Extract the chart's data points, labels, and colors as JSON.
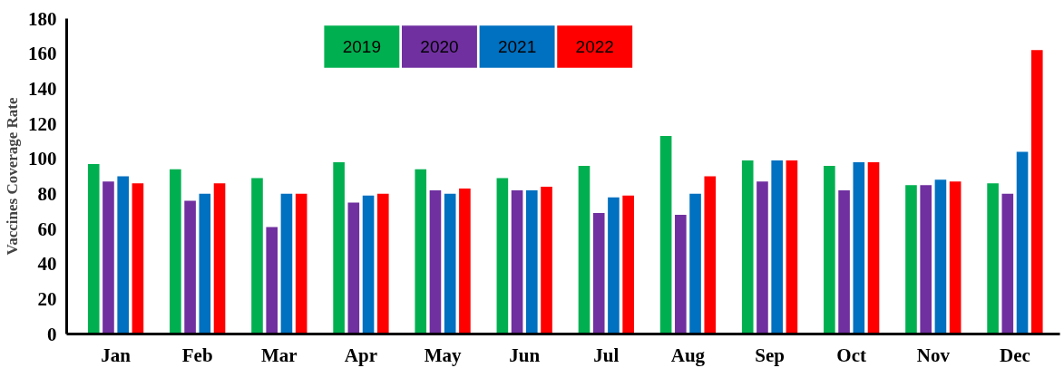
{
  "chart_data": {
    "type": "bar",
    "ylabel": "Vaccines Coverage Rate",
    "categories": [
      "Jan",
      "Feb",
      "Mar",
      "Apr",
      "May",
      "Jun",
      "Jul",
      "Aug",
      "Sep",
      "Oct",
      "Nov",
      "Dec"
    ],
    "series": [
      {
        "name": "2019",
        "color": "#00b050",
        "values": [
          97,
          94,
          89,
          98,
          94,
          89,
          96,
          113,
          99,
          96,
          85,
          86
        ]
      },
      {
        "name": "2020",
        "color": "#7030a0",
        "values": [
          87,
          76,
          61,
          75,
          82,
          82,
          69,
          68,
          87,
          82,
          85,
          80
        ]
      },
      {
        "name": "2021",
        "color": "#0070c0",
        "values": [
          90,
          80,
          80,
          79,
          80,
          82,
          78,
          80,
          99,
          98,
          88,
          104
        ]
      },
      {
        "name": "2022",
        "color": "#ff0000",
        "values": [
          86,
          86,
          80,
          80,
          83,
          84,
          79,
          90,
          99,
          98,
          87,
          162
        ]
      }
    ],
    "ylim": [
      0,
      180
    ],
    "yticks": [
      0,
      20,
      40,
      60,
      80,
      100,
      120,
      140,
      160,
      180
    ],
    "grid": false,
    "legend": "top"
  }
}
